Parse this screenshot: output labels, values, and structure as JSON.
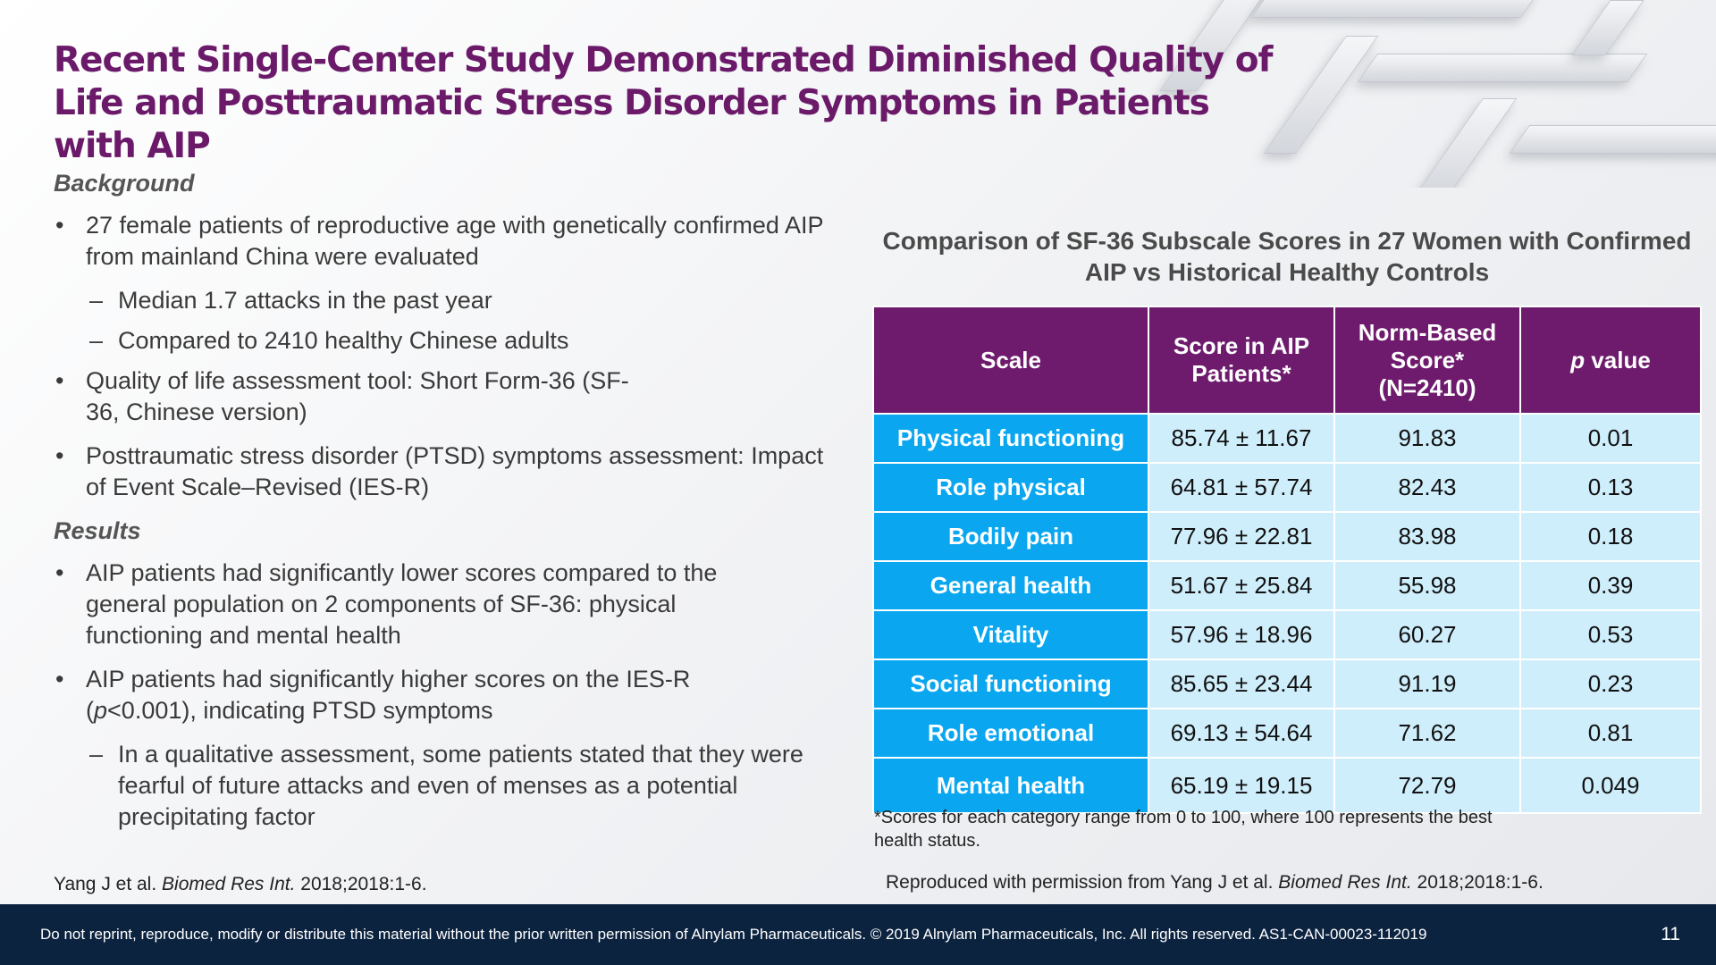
{
  "title": "Recent Single-Center Study Demonstrated Diminished Quality of Life and Posttraumatic Stress Disorder Symptoms in Patients with AIP",
  "background": {
    "heading": "Background",
    "bullet1": "27 female patients of reproductive age with genetically confirmed AIP from mainland China were evaluated",
    "sub1": "Median 1.7 attacks in the past year",
    "sub2": "Compared to 2410 healthy Chinese adults",
    "bullet2": "Quality of life assessment tool: Short Form-36 (SF-36, Chinese version)",
    "bullet3": "Posttraumatic stress disorder (PTSD) symptoms assessment: Impact of Event Scale–Revised (IES-R)"
  },
  "results": {
    "heading": "Results",
    "bullet1": "AIP patients had significantly lower scores compared to the general population on 2 components of SF-36: physical functioning and mental health",
    "bullet2_pre": "AIP patients had significantly higher scores on the IES-R (",
    "bullet2_p": "p",
    "bullet2_post": "<0.001), indicating PTSD symptoms",
    "sub1": "In a qualitative assessment, some patients stated that they were fearful of future attacks and even of menses as a potential precipitating factor"
  },
  "left_ref": {
    "pre": "Yang J et al. ",
    "journal": "Biomed Res Int.",
    "post": " 2018;2018:1-6."
  },
  "table": {
    "title": "Comparison of SF-36 Subscale Scores in 27 Women with Confirmed AIP vs Historical Healthy Controls",
    "headers": {
      "scale": "Scale",
      "score_l1": "Score in AIP",
      "score_l2": "Patients*",
      "norm_l1": "Norm-Based",
      "norm_l2": "Score*",
      "norm_l3": "(N=2410)",
      "p_italic": "p",
      "p_rest": " value"
    },
    "rows": [
      {
        "scale": "Physical functioning",
        "score": "85.74 ± 11.67",
        "norm": "91.83",
        "p": "0.01"
      },
      {
        "scale": "Role physical",
        "score": "64.81 ± 57.74",
        "norm": "82.43",
        "p": "0.13"
      },
      {
        "scale": "Bodily pain",
        "score": "77.96 ± 22.81",
        "norm": "83.98",
        "p": "0.18"
      },
      {
        "scale": "General health",
        "score": "51.67 ± 25.84",
        "norm": "55.98",
        "p": "0.39"
      },
      {
        "scale": "Vitality",
        "score": "57.96 ± 18.96",
        "norm": "60.27",
        "p": "0.53"
      },
      {
        "scale": "Social functioning",
        "score": "85.65 ± 23.44",
        "norm": "91.19",
        "p": "0.23"
      },
      {
        "scale": "Role emotional",
        "score": "69.13 ± 54.64",
        "norm": "71.62",
        "p": "0.81"
      },
      {
        "scale": "Mental health",
        "score": "65.19 ± 19.15",
        "norm": "72.79",
        "p": "0.049"
      }
    ]
  },
  "footnote": "*Scores for each category range from 0 to 100, where 100 represents the best health status.",
  "reproduced": {
    "pre": "Reproduced with permission from Yang J et al. ",
    "journal": "Biomed Res Int.",
    "post": " 2018;2018:1-6."
  },
  "footer": {
    "disclaimer": "Do not reprint, reproduce, modify or distribute this material without the prior written permission of Alnylam Pharmaceuticals. © 2019 Alnylam Pharmaceuticals, Inc. All rights reserved. AS1-CAN-00023-112019",
    "page": "11"
  },
  "colors": {
    "title": "#6b1a6a",
    "header_bg": "#6e1b6d",
    "scale_bg": "#0aa7f0",
    "cell_bg": "#cfeefc",
    "footer_bg": "#0c2340"
  }
}
